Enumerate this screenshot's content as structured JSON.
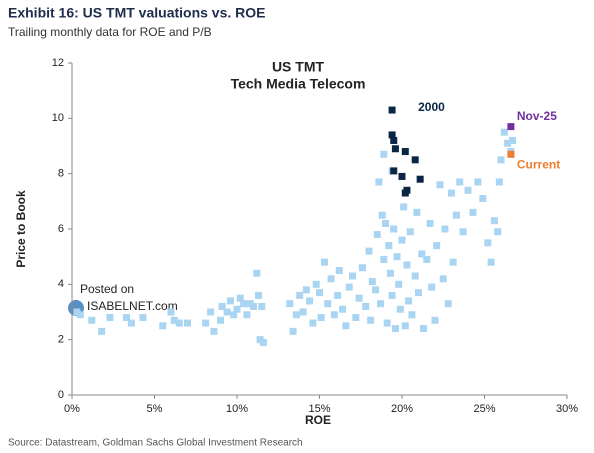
{
  "page_title": "Exhibit 16: US TMT valuations vs. ROE",
  "page_subtitle": "Trailing monthly data for ROE and P/B",
  "source": "Source: Datastream, Goldman Sachs Global Investment Research",
  "chart_data": {
    "type": "scatter",
    "title": "US TMT",
    "subtitle": "Tech Media Telecom",
    "x_label": "ROE",
    "y_label": "Price to Book",
    "watermark": {
      "line1": "Posted on",
      "line2": "ISABELNET.com"
    },
    "xlim": [
      0,
      30
    ],
    "xticks": [
      {
        "value": 0,
        "label": "0%"
      },
      {
        "value": 5,
        "label": "5%"
      },
      {
        "value": 10,
        "label": "10%"
      },
      {
        "value": 15,
        "label": "15%"
      },
      {
        "value": 20,
        "label": "20%"
      },
      {
        "value": 25,
        "label": "25%"
      },
      {
        "value": 30,
        "label": "30%"
      }
    ],
    "ylim": [
      0,
      12
    ],
    "yticks": [
      0,
      2,
      4,
      6,
      8,
      10,
      12
    ],
    "grid": false,
    "series": [
      {
        "color": "#a9d4f2",
        "x": [
          0.3,
          0.5,
          1.2,
          1.8,
          2.3,
          3.3,
          3.6,
          4.3,
          5.5,
          6.0,
          6.2,
          6.5,
          7.0,
          8.1,
          8.4,
          8.6,
          9.0,
          9.1,
          9.4,
          9.6,
          9.8,
          10.0,
          10.2,
          10.4,
          10.6,
          10.8,
          11.0,
          11.2,
          11.3,
          11.4,
          11.6,
          11.5,
          13.2,
          13.4,
          13.6,
          13.8,
          14.0,
          14.2,
          14.4,
          14.6,
          14.8,
          15.0,
          15.1,
          15.3,
          15.5,
          15.7,
          15.9,
          16.1,
          16.2,
          16.4,
          16.6,
          16.8,
          17.0,
          17.2,
          17.4,
          17.6,
          17.8,
          18.0,
          18.1,
          18.2,
          18.4,
          18.5,
          18.6,
          18.7,
          18.8,
          18.9,
          19.0,
          19.1,
          19.2,
          19.3,
          19.4,
          19.5,
          19.6,
          19.7,
          19.8,
          19.9,
          20.0,
          20.1,
          20.2,
          20.3,
          20.4,
          20.5,
          20.6,
          20.8,
          20.9,
          21.0,
          21.2,
          21.3,
          21.5,
          21.7,
          21.8,
          22.0,
          22.1,
          22.3,
          22.5,
          22.6,
          22.8,
          23.0,
          23.1,
          23.3,
          23.5,
          23.7,
          24.0,
          24.3,
          24.6,
          24.9,
          25.2,
          25.4,
          25.6,
          25.8,
          25.9,
          26.0,
          26.2,
          26.4,
          26.6,
          26.7,
          19.4,
          18.9
        ],
        "values": [
          3.0,
          2.9,
          2.7,
          2.3,
          2.8,
          2.8,
          2.6,
          2.8,
          2.5,
          3.0,
          2.7,
          2.6,
          2.6,
          2.6,
          3.0,
          2.3,
          2.7,
          3.2,
          3.0,
          3.4,
          2.9,
          3.1,
          3.5,
          3.3,
          2.9,
          3.3,
          3.2,
          4.4,
          3.6,
          2.0,
          1.9,
          3.2,
          3.3,
          2.3,
          2.9,
          3.6,
          3.0,
          3.8,
          3.4,
          2.6,
          4.0,
          3.7,
          2.8,
          4.8,
          3.3,
          4.2,
          2.9,
          3.6,
          4.5,
          3.1,
          2.5,
          3.9,
          4.3,
          2.8,
          3.5,
          4.6,
          3.2,
          5.2,
          2.7,
          4.1,
          3.8,
          5.8,
          7.7,
          3.3,
          6.5,
          4.9,
          6.2,
          2.6,
          5.4,
          4.4,
          3.6,
          6.0,
          2.4,
          5.0,
          4.0,
          3.1,
          5.6,
          6.8,
          2.5,
          4.7,
          3.4,
          5.9,
          2.9,
          4.3,
          6.6,
          3.7,
          5.1,
          2.4,
          4.9,
          6.2,
          3.9,
          2.7,
          5.4,
          7.6,
          4.2,
          6.0,
          3.3,
          7.3,
          4.8,
          6.5,
          7.7,
          5.9,
          7.4,
          6.6,
          7.7,
          7.1,
          5.5,
          4.8,
          6.3,
          5.9,
          7.7,
          8.5,
          9.5,
          9.1,
          8.8,
          9.2,
          8.1,
          8.7
        ]
      },
      {
        "name": "2000",
        "color": "#0b2545",
        "x": [
          19.4,
          19.4,
          19.5,
          19.6,
          19.5,
          20.0,
          20.2,
          20.3,
          20.2,
          20.8,
          21.1
        ],
        "values": [
          10.3,
          9.4,
          9.2,
          8.9,
          8.1,
          7.9,
          8.8,
          7.4,
          7.3,
          8.5,
          7.8
        ]
      },
      {
        "name": "Nov-25",
        "color": "#7030a0",
        "x": [
          26.6
        ],
        "values": [
          9.7
        ]
      },
      {
        "name": "Current",
        "color": "#ed7d31",
        "x": [
          26.6
        ],
        "values": [
          8.7
        ]
      }
    ]
  }
}
